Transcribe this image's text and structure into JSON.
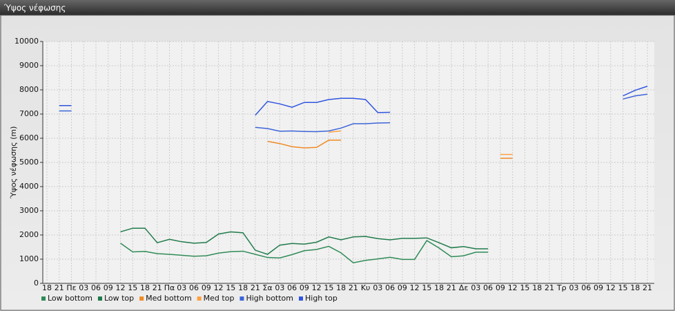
{
  "chart_data": {
    "type": "line",
    "title": "Ύψος νέφωσης",
    "y_label": "Ύψος νέφωσης (m)",
    "categories": [
      "18",
      "21",
      "Πε",
      "03",
      "06",
      "09",
      "12",
      "15",
      "18",
      "21",
      "Πα",
      "03",
      "06",
      "09",
      "12",
      "15",
      "18",
      "21",
      "Σα",
      "03",
      "06",
      "09",
      "12",
      "15",
      "18",
      "21",
      "Κυ",
      "03",
      "06",
      "09",
      "12",
      "15",
      "18",
      "21",
      "Δε",
      "03",
      "06",
      "09",
      "12",
      "15",
      "18",
      "21",
      "Τρ",
      "03",
      "06",
      "09",
      "12",
      "15",
      "18",
      "21"
    ],
    "series": [
      {
        "name": "Low bottom",
        "color": "#2e8b57",
        "values": [
          null,
          null,
          null,
          null,
          null,
          null,
          1660,
          1300,
          1320,
          1230,
          1200,
          1160,
          1120,
          1140,
          1250,
          1310,
          1330,
          1200,
          1070,
          1050,
          1190,
          1350,
          1400,
          1530,
          1260,
          850,
          950,
          1010,
          1080,
          990,
          990,
          1770,
          1460,
          1100,
          1140,
          1290,
          1290,
          null,
          null,
          null,
          null,
          null,
          null,
          null,
          null,
          null,
          null,
          null,
          null,
          null
        ]
      },
      {
        "name": "Low top",
        "color": "#1f7a4a",
        "values": [
          null,
          null,
          null,
          null,
          null,
          null,
          2130,
          2280,
          2280,
          1680,
          1820,
          1720,
          1660,
          1690,
          2040,
          2130,
          2090,
          1370,
          1200,
          1580,
          1650,
          1620,
          1700,
          1920,
          1800,
          1920,
          1940,
          1850,
          1800,
          1860,
          1860,
          1880,
          1680,
          1470,
          1520,
          1430,
          1430,
          null,
          null,
          null,
          null,
          null,
          null,
          null,
          null,
          null,
          null,
          null,
          null,
          null
        ]
      },
      {
        "name": "Med bottom",
        "color": "#f08a24",
        "values": [
          null,
          null,
          null,
          null,
          null,
          null,
          null,
          null,
          null,
          null,
          null,
          null,
          null,
          null,
          null,
          null,
          null,
          null,
          5870,
          5780,
          5650,
          5600,
          5620,
          5920,
          5920,
          null,
          null,
          null,
          null,
          null,
          null,
          null,
          null,
          null,
          null,
          null,
          null,
          5170,
          5170,
          null,
          null,
          null,
          null,
          null,
          null,
          null,
          null,
          null,
          null,
          null
        ]
      },
      {
        "name": "Med top",
        "color": "#ffa040",
        "values": [
          null,
          null,
          null,
          null,
          null,
          null,
          null,
          null,
          null,
          null,
          null,
          null,
          null,
          null,
          null,
          null,
          null,
          null,
          null,
          null,
          null,
          null,
          null,
          6250,
          6300,
          null,
          null,
          null,
          null,
          null,
          null,
          null,
          null,
          null,
          null,
          null,
          null,
          5330,
          5330,
          null,
          null,
          null,
          null,
          null,
          null,
          null,
          null,
          null,
          null,
          null
        ]
      },
      {
        "name": "High bottom",
        "color": "#3c64d8",
        "values": [
          null,
          7130,
          7130,
          null,
          null,
          null,
          null,
          null,
          null,
          null,
          null,
          null,
          null,
          null,
          null,
          null,
          null,
          6450,
          6400,
          6290,
          6300,
          6280,
          6270,
          6300,
          6420,
          6600,
          6600,
          6630,
          6640,
          null,
          null,
          null,
          null,
          null,
          null,
          null,
          null,
          null,
          null,
          null,
          null,
          null,
          null,
          null,
          null,
          null,
          null,
          7620,
          7750,
          7820
        ]
      },
      {
        "name": "High top",
        "color": "#2f55e0",
        "values": [
          null,
          7350,
          7350,
          null,
          null,
          null,
          null,
          null,
          null,
          null,
          null,
          null,
          null,
          null,
          null,
          null,
          null,
          6950,
          7520,
          7420,
          7280,
          7480,
          7480,
          7600,
          7650,
          7650,
          7600,
          7060,
          7070,
          null,
          null,
          null,
          null,
          null,
          null,
          null,
          null,
          null,
          null,
          null,
          null,
          null,
          null,
          null,
          null,
          null,
          null,
          7750,
          7980,
          8150
        ]
      }
    ],
    "ylim": [
      0,
      10000
    ],
    "yticks": [
      0,
      1000,
      2000,
      3000,
      4000,
      5000,
      6000,
      7000,
      8000,
      9000,
      10000
    ],
    "grid": true
  }
}
